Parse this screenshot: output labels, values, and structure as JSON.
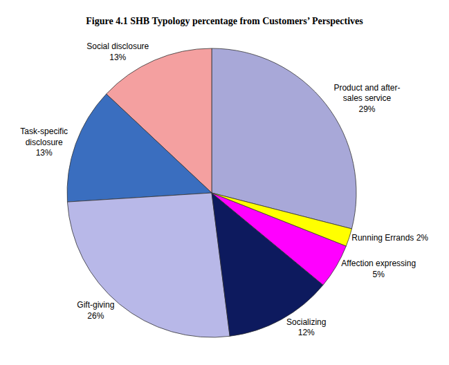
{
  "chart_data": {
    "type": "pie",
    "title": "Figure 4.1 SHB Typology percentage from Customers’ Perspectives",
    "categories": [
      "Product and after-\nsales service\n29%",
      "Social disclosure\n13%",
      "Task-specific\ndisclosure\n13%",
      "Gift-giving\n26%",
      "Socializing\n12%",
      "Affection expressing\n5%",
      "Running Errands 2%"
    ],
    "values": [
      29,
      13,
      13,
      26,
      12,
      5,
      2
    ],
    "colors": [
      "#A8A8D8",
      "#F4A0A0",
      "#3A6EBF",
      "#B8B8E8",
      "#0D1A5E",
      "#FF00FF",
      "#FFFF00"
    ]
  }
}
